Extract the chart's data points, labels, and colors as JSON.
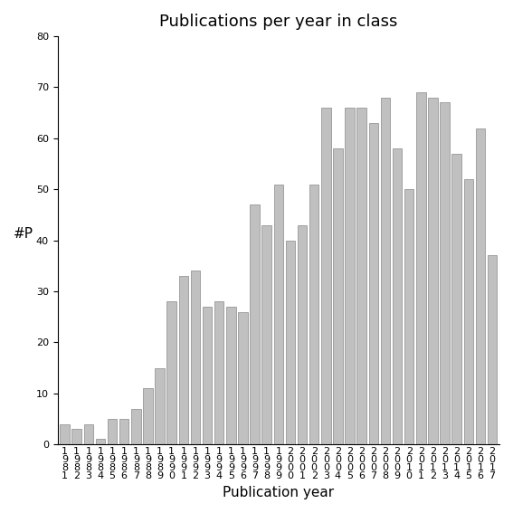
{
  "title": "Publications per year in class",
  "xlabel": "Publication year",
  "ylabel": "#P",
  "years": [
    "1981",
    "1982",
    "1983",
    "1984",
    "1985",
    "1986",
    "1987",
    "1988",
    "1989",
    "1990",
    "1991",
    "1992",
    "1993",
    "1994",
    "1995",
    "1996",
    "1997",
    "1998",
    "1999",
    "2000",
    "2001",
    "2002",
    "2003",
    "2004",
    "2005",
    "2006",
    "2007",
    "2008",
    "2009",
    "2010",
    "2011",
    "2012",
    "2013",
    "2014",
    "2015",
    "2016",
    "2017"
  ],
  "values": [
    4,
    3,
    4,
    1,
    5,
    5,
    7,
    11,
    15,
    28,
    33,
    34,
    27,
    28,
    27,
    26,
    47,
    43,
    51,
    40,
    43,
    51,
    66,
    58,
    66,
    66,
    63,
    68,
    58,
    50,
    69,
    68,
    67,
    57,
    52,
    62,
    37
  ],
  "bar_color": "#c0c0c0",
  "bar_edge_color": "#888888",
  "ylim": [
    0,
    80
  ],
  "yticks": [
    0,
    10,
    20,
    30,
    40,
    50,
    60,
    70,
    80
  ],
  "background_color": "#ffffff",
  "title_fontsize": 13,
  "axis_label_fontsize": 11,
  "tick_label_fontsize": 8
}
